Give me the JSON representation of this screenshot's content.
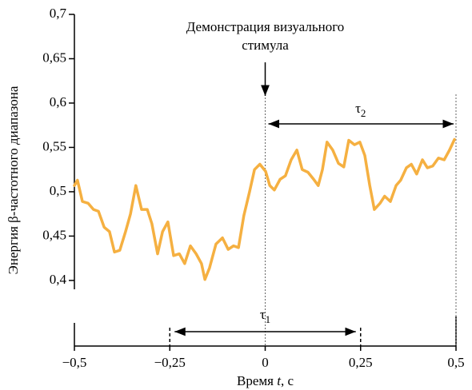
{
  "chart_data": {
    "type": "line",
    "x_label": [
      "Время ",
      "t",
      ", с"
    ],
    "y_label": "Энергия β-частотного диапазона",
    "annotation": {
      "lines": [
        "Демонстрация визуального",
        "стимула"
      ],
      "x": 0
    },
    "intervals": [
      {
        "symbol": "τ",
        "sub": "1",
        "x": [
          -0.25,
          0.25
        ]
      },
      {
        "symbol": "τ",
        "sub": "2",
        "x": [
          0,
          0.5
        ]
      }
    ],
    "xlim": [
      -0.5,
      0.5
    ],
    "xticks": [
      {
        "value": -0.5,
        "label": "−0,5"
      },
      {
        "value": -0.25,
        "label": "−0,25"
      },
      0,
      {
        "value": 0.25,
        "label": "0,25"
      },
      {
        "value": 0.5,
        "label": "0,5"
      }
    ],
    "ylim": [
      0.326,
      0.7
    ],
    "yticks": [
      {
        "value": 0.4,
        "label": "0,4"
      },
      {
        "value": 0.45,
        "label": "0,45"
      },
      {
        "value": 0.5,
        "label": "0,5"
      },
      {
        "value": 0.55,
        "label": "0,55"
      },
      {
        "value": 0.6,
        "label": "0,6"
      },
      {
        "value": 0.65,
        "label": "0,65"
      },
      {
        "value": 0.7,
        "label": "0,7"
      }
    ],
    "x": [
      -0.5,
      -0.492,
      -0.479,
      -0.464,
      -0.45,
      -0.437,
      -0.422,
      -0.408,
      -0.395,
      -0.381,
      -0.366,
      -0.353,
      -0.339,
      -0.324,
      -0.309,
      -0.297,
      -0.282,
      -0.269,
      -0.255,
      -0.24,
      -0.225,
      -0.211,
      -0.196,
      -0.181,
      -0.167,
      -0.158,
      -0.146,
      -0.129,
      -0.112,
      -0.097,
      -0.083,
      -0.07,
      -0.056,
      -0.041,
      -0.028,
      -0.014,
      0.001,
      0.012,
      0.024,
      0.039,
      0.053,
      0.068,
      0.083,
      0.097,
      0.112,
      0.127,
      0.139,
      0.15,
      0.162,
      0.177,
      0.192,
      0.206,
      0.219,
      0.234,
      0.248,
      0.261,
      0.274,
      0.286,
      0.301,
      0.313,
      0.328,
      0.343,
      0.355,
      0.37,
      0.383,
      0.397,
      0.412,
      0.425,
      0.439,
      0.454,
      0.469,
      0.483,
      0.496
    ],
    "series": [
      {
        "color": "#f5b041",
        "values": [
          0.507,
          0.513,
          0.489,
          0.487,
          0.48,
          0.478,
          0.46,
          0.455,
          0.432,
          0.434,
          0.455,
          0.475,
          0.507,
          0.48,
          0.48,
          0.464,
          0.43,
          0.455,
          0.466,
          0.428,
          0.43,
          0.419,
          0.439,
          0.43,
          0.419,
          0.401,
          0.414,
          0.441,
          0.448,
          0.435,
          0.439,
          0.437,
          0.473,
          0.5,
          0.525,
          0.531,
          0.523,
          0.507,
          0.502,
          0.514,
          0.518,
          0.536,
          0.547,
          0.525,
          0.522,
          0.514,
          0.507,
          0.525,
          0.556,
          0.547,
          0.532,
          0.528,
          0.558,
          0.553,
          0.556,
          0.541,
          0.507,
          0.48,
          0.487,
          0.495,
          0.489,
          0.507,
          0.513,
          0.527,
          0.531,
          0.52,
          0.536,
          0.527,
          0.529,
          0.538,
          0.536,
          0.547,
          0.559
        ]
      }
    ]
  }
}
